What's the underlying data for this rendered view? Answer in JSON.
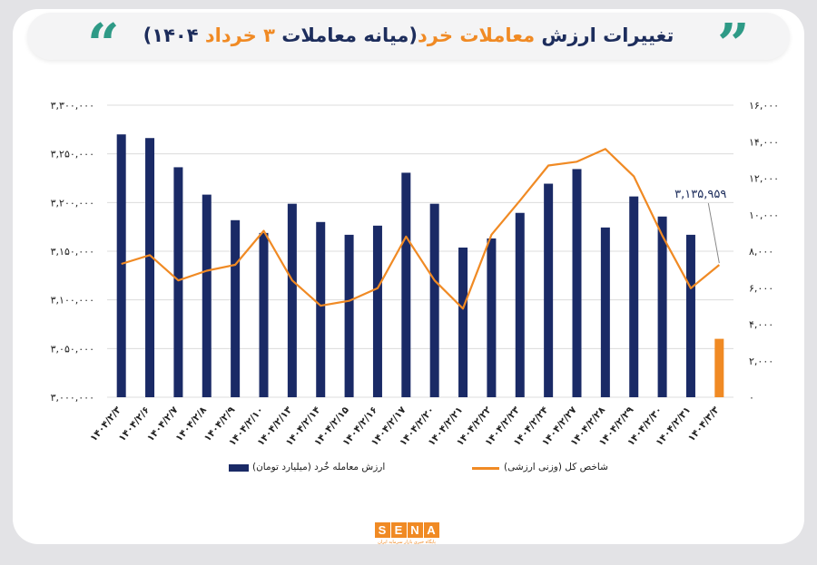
{
  "header": {
    "title_part1": "تغییرات ارزش ",
    "title_highlight1": "معاملات خرد",
    "title_part2": "(میانه معاملات ",
    "title_highlight2": "۳ خرداد",
    "title_part3": " ۱۴۰۴)",
    "quote_left": "“",
    "quote_right": "”"
  },
  "legend": {
    "bar_label": "ارزش معامله خُرد (میلیارد تومان)",
    "line_label": "شاخص کل (وزنی ارزشی)"
  },
  "logo": {
    "letters": [
      "S",
      "E",
      "N",
      "A"
    ],
    "subtitle": "پایگاه خبری بازار سرمایه ایران"
  },
  "colors": {
    "bar": "#1a2a66",
    "highlight_bar": "#f08a24",
    "line": "#f08a24",
    "title": "#1d2d5c",
    "quote": "#2e9a86",
    "grid": "#dcdcdc"
  },
  "chart_data": {
    "type": "bar",
    "categories": [
      "۱۴۰۴/۲/۳",
      "۱۴۰۴/۲/۶",
      "۱۴۰۴/۲/۷",
      "۱۴۰۴/۲/۸",
      "۱۴۰۴/۲/۹",
      "۱۴۰۴/۲/۱۰",
      "۱۴۰۴/۲/۱۳",
      "۱۴۰۴/۲/۱۴",
      "۱۴۰۴/۲/۱۵",
      "۱۴۰۴/۲/۱۶",
      "۱۴۰۴/۲/۱۷",
      "۱۴۰۴/۲/۲۰",
      "۱۴۰۴/۲/۲۱",
      "۱۴۰۴/۲/۲۲",
      "۱۴۰۴/۲/۲۳",
      "۱۴۰۴/۲/۲۴",
      "۱۴۰۴/۲/۲۷",
      "۱۴۰۴/۲/۲۸",
      "۱۴۰۴/۲/۲۹",
      "۱۴۰۴/۲/۳۰",
      "۱۴۰۴/۲/۳۱",
      "۱۴۰۴/۳/۳"
    ],
    "series": [
      {
        "name": "ارزش معامله خُرد (میلیارد تومان)",
        "axis": "right",
        "kind": "bar",
        "values": [
          14400,
          14200,
          12600,
          11100,
          9700,
          9000,
          10600,
          9600,
          8900,
          9400,
          12300,
          10600,
          8200,
          8700,
          10100,
          11700,
          12500,
          9300,
          11000,
          9900,
          8900,
          3200
        ]
      },
      {
        "name": "شاخص کل (وزنی ارزشی)",
        "axis": "left",
        "kind": "line",
        "values": [
          3137000,
          3146000,
          3120000,
          3130000,
          3136000,
          3171000,
          3120000,
          3094000,
          3099000,
          3112000,
          3165000,
          3120000,
          3091000,
          3167000,
          3202000,
          3238000,
          3242000,
          3255000,
          3227000,
          3166000,
          3112000,
          3135959
        ]
      }
    ],
    "highlight_index": 21,
    "annotation": "۳,۱۳۵,۹۵۹",
    "left_axis": {
      "min": 3000000,
      "max": 3300000,
      "ticks": [
        "۳,۰۰۰,۰۰۰",
        "۳,۰۵۰,۰۰۰",
        "۳,۱۰۰,۰۰۰",
        "۳,۱۵۰,۰۰۰",
        "۳,۲۰۰,۰۰۰",
        "۳,۲۵۰,۰۰۰",
        "۳,۳۰۰,۰۰۰"
      ]
    },
    "right_axis": {
      "min": 0,
      "max": 16000,
      "ticks": [
        "۰",
        "۲,۰۰۰",
        "۴,۰۰۰",
        "۶,۰۰۰",
        "۸,۰۰۰",
        "۱۰,۰۰۰",
        "۱۲,۰۰۰",
        "۱۴,۰۰۰",
        "۱۶,۰۰۰"
      ]
    },
    "grid": true,
    "legend_position": "bottom"
  }
}
